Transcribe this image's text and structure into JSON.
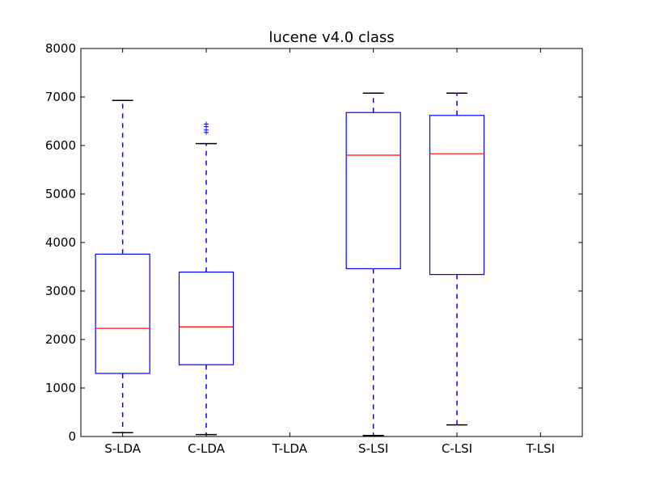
{
  "chart_data": {
    "type": "box",
    "title": "lucene v4.0 class",
    "xlabel": "",
    "ylabel": "",
    "ylim": [
      0,
      8000
    ],
    "yticks": [
      0,
      1000,
      2000,
      3000,
      4000,
      5000,
      6000,
      7000,
      8000
    ],
    "categories": [
      "S-LDA",
      "C-LDA",
      "T-LDA",
      "S-LSI",
      "C-LSI",
      "T-LSI"
    ],
    "boxes": [
      {
        "category": "S-LDA",
        "whisker_low": 80,
        "q1": 1300,
        "median": 2230,
        "q3": 3760,
        "whisker_high": 6930,
        "outliers": []
      },
      {
        "category": "C-LDA",
        "whisker_low": 40,
        "q1": 1480,
        "median": 2260,
        "q3": 3390,
        "whisker_high": 6040,
        "outliers": [
          6270,
          6320,
          6390,
          6440
        ]
      },
      {
        "category": "T-LDA",
        "empty": true
      },
      {
        "category": "S-LSI",
        "whisker_low": 20,
        "q1": 3460,
        "median": 5800,
        "q3": 6680,
        "whisker_high": 7080,
        "outliers": []
      },
      {
        "category": "C-LSI",
        "whisker_low": 240,
        "q1": 3340,
        "median": 5830,
        "q3": 6620,
        "whisker_high": 7080,
        "outliers": []
      },
      {
        "category": "T-LSI",
        "empty": true
      }
    ],
    "colors": {
      "box": "#0000ff",
      "median": "#ff0000",
      "whisker": "#0000ff",
      "axis": "#000000"
    },
    "grid": false,
    "legend": "none"
  }
}
